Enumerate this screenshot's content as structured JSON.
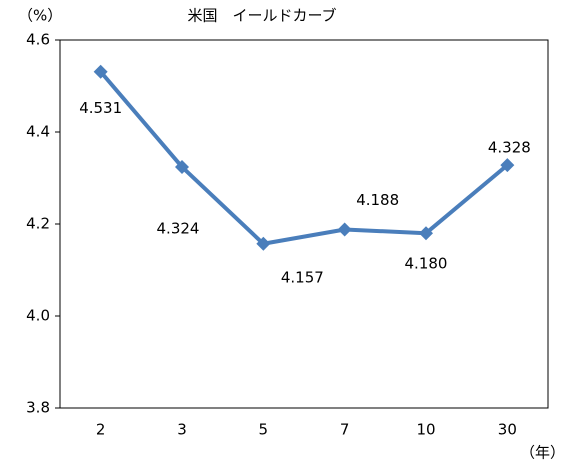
{
  "chart_data": {
    "type": "line",
    "title": "米国　イールドカーブ",
    "y_label": "（%）",
    "x_label": "（年）",
    "categories": [
      "2",
      "3",
      "5",
      "7",
      "10",
      "30"
    ],
    "series": [
      {
        "name": "米国",
        "color": "#4a7ebb",
        "values": [
          4.531,
          4.324,
          4.157,
          4.188,
          4.18,
          4.328
        ],
        "value_labels": [
          "4.531",
          "4.324",
          "4.157",
          "4.188",
          "4.180",
          "4.328"
        ]
      }
    ],
    "ylim": [
      3.8,
      4.6
    ],
    "yticks": [
      3.8,
      {
        "value": 4,
        "label": "4.0"
      },
      4.2,
      4.4,
      4.6
    ],
    "grid": false
  }
}
